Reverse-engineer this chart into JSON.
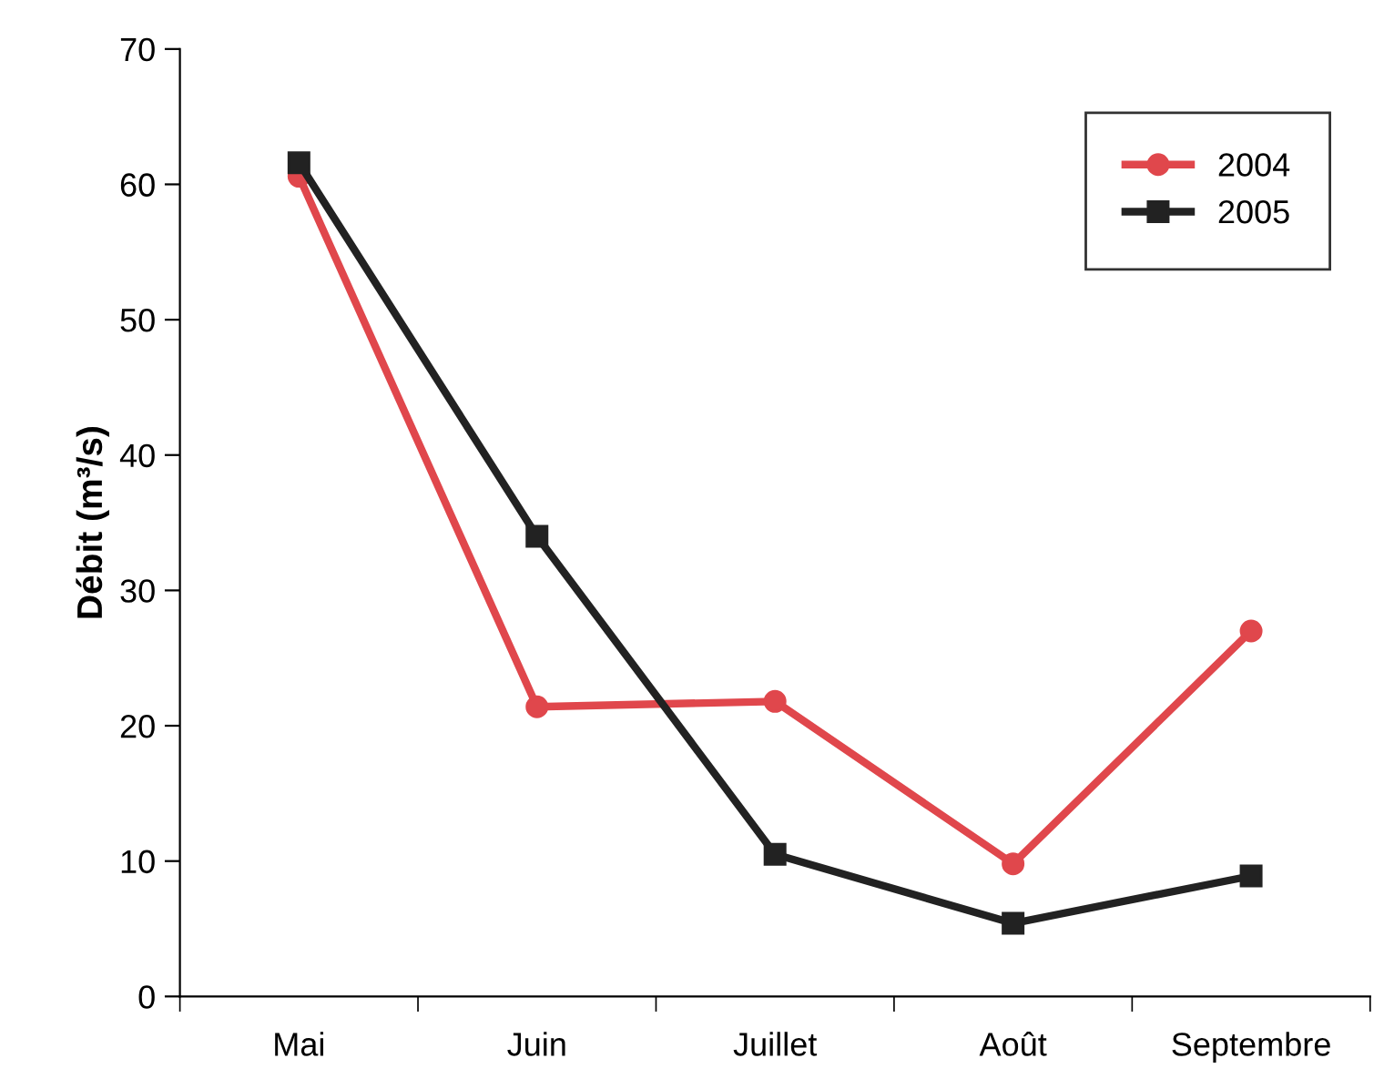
{
  "chart_data": {
    "type": "line",
    "ylabel": "Débit (m³/s)",
    "categories": [
      "Mai",
      "Juin",
      "Juillet",
      "Août",
      "Septembre"
    ],
    "series": [
      {
        "name": "2004",
        "color": "#e0474c",
        "marker": "circle",
        "values": [
          60.6,
          21.4,
          21.8,
          9.8,
          27.0
        ]
      },
      {
        "name": "2005",
        "color": "#222222",
        "marker": "square",
        "values": [
          61.6,
          34.0,
          10.5,
          5.4,
          8.9
        ]
      }
    ],
    "ylim": [
      0,
      70
    ],
    "yticks": [
      0,
      10,
      20,
      30,
      40,
      50,
      60,
      70
    ],
    "grid": false,
    "legend": "top right",
    "line_style": "solid"
  }
}
